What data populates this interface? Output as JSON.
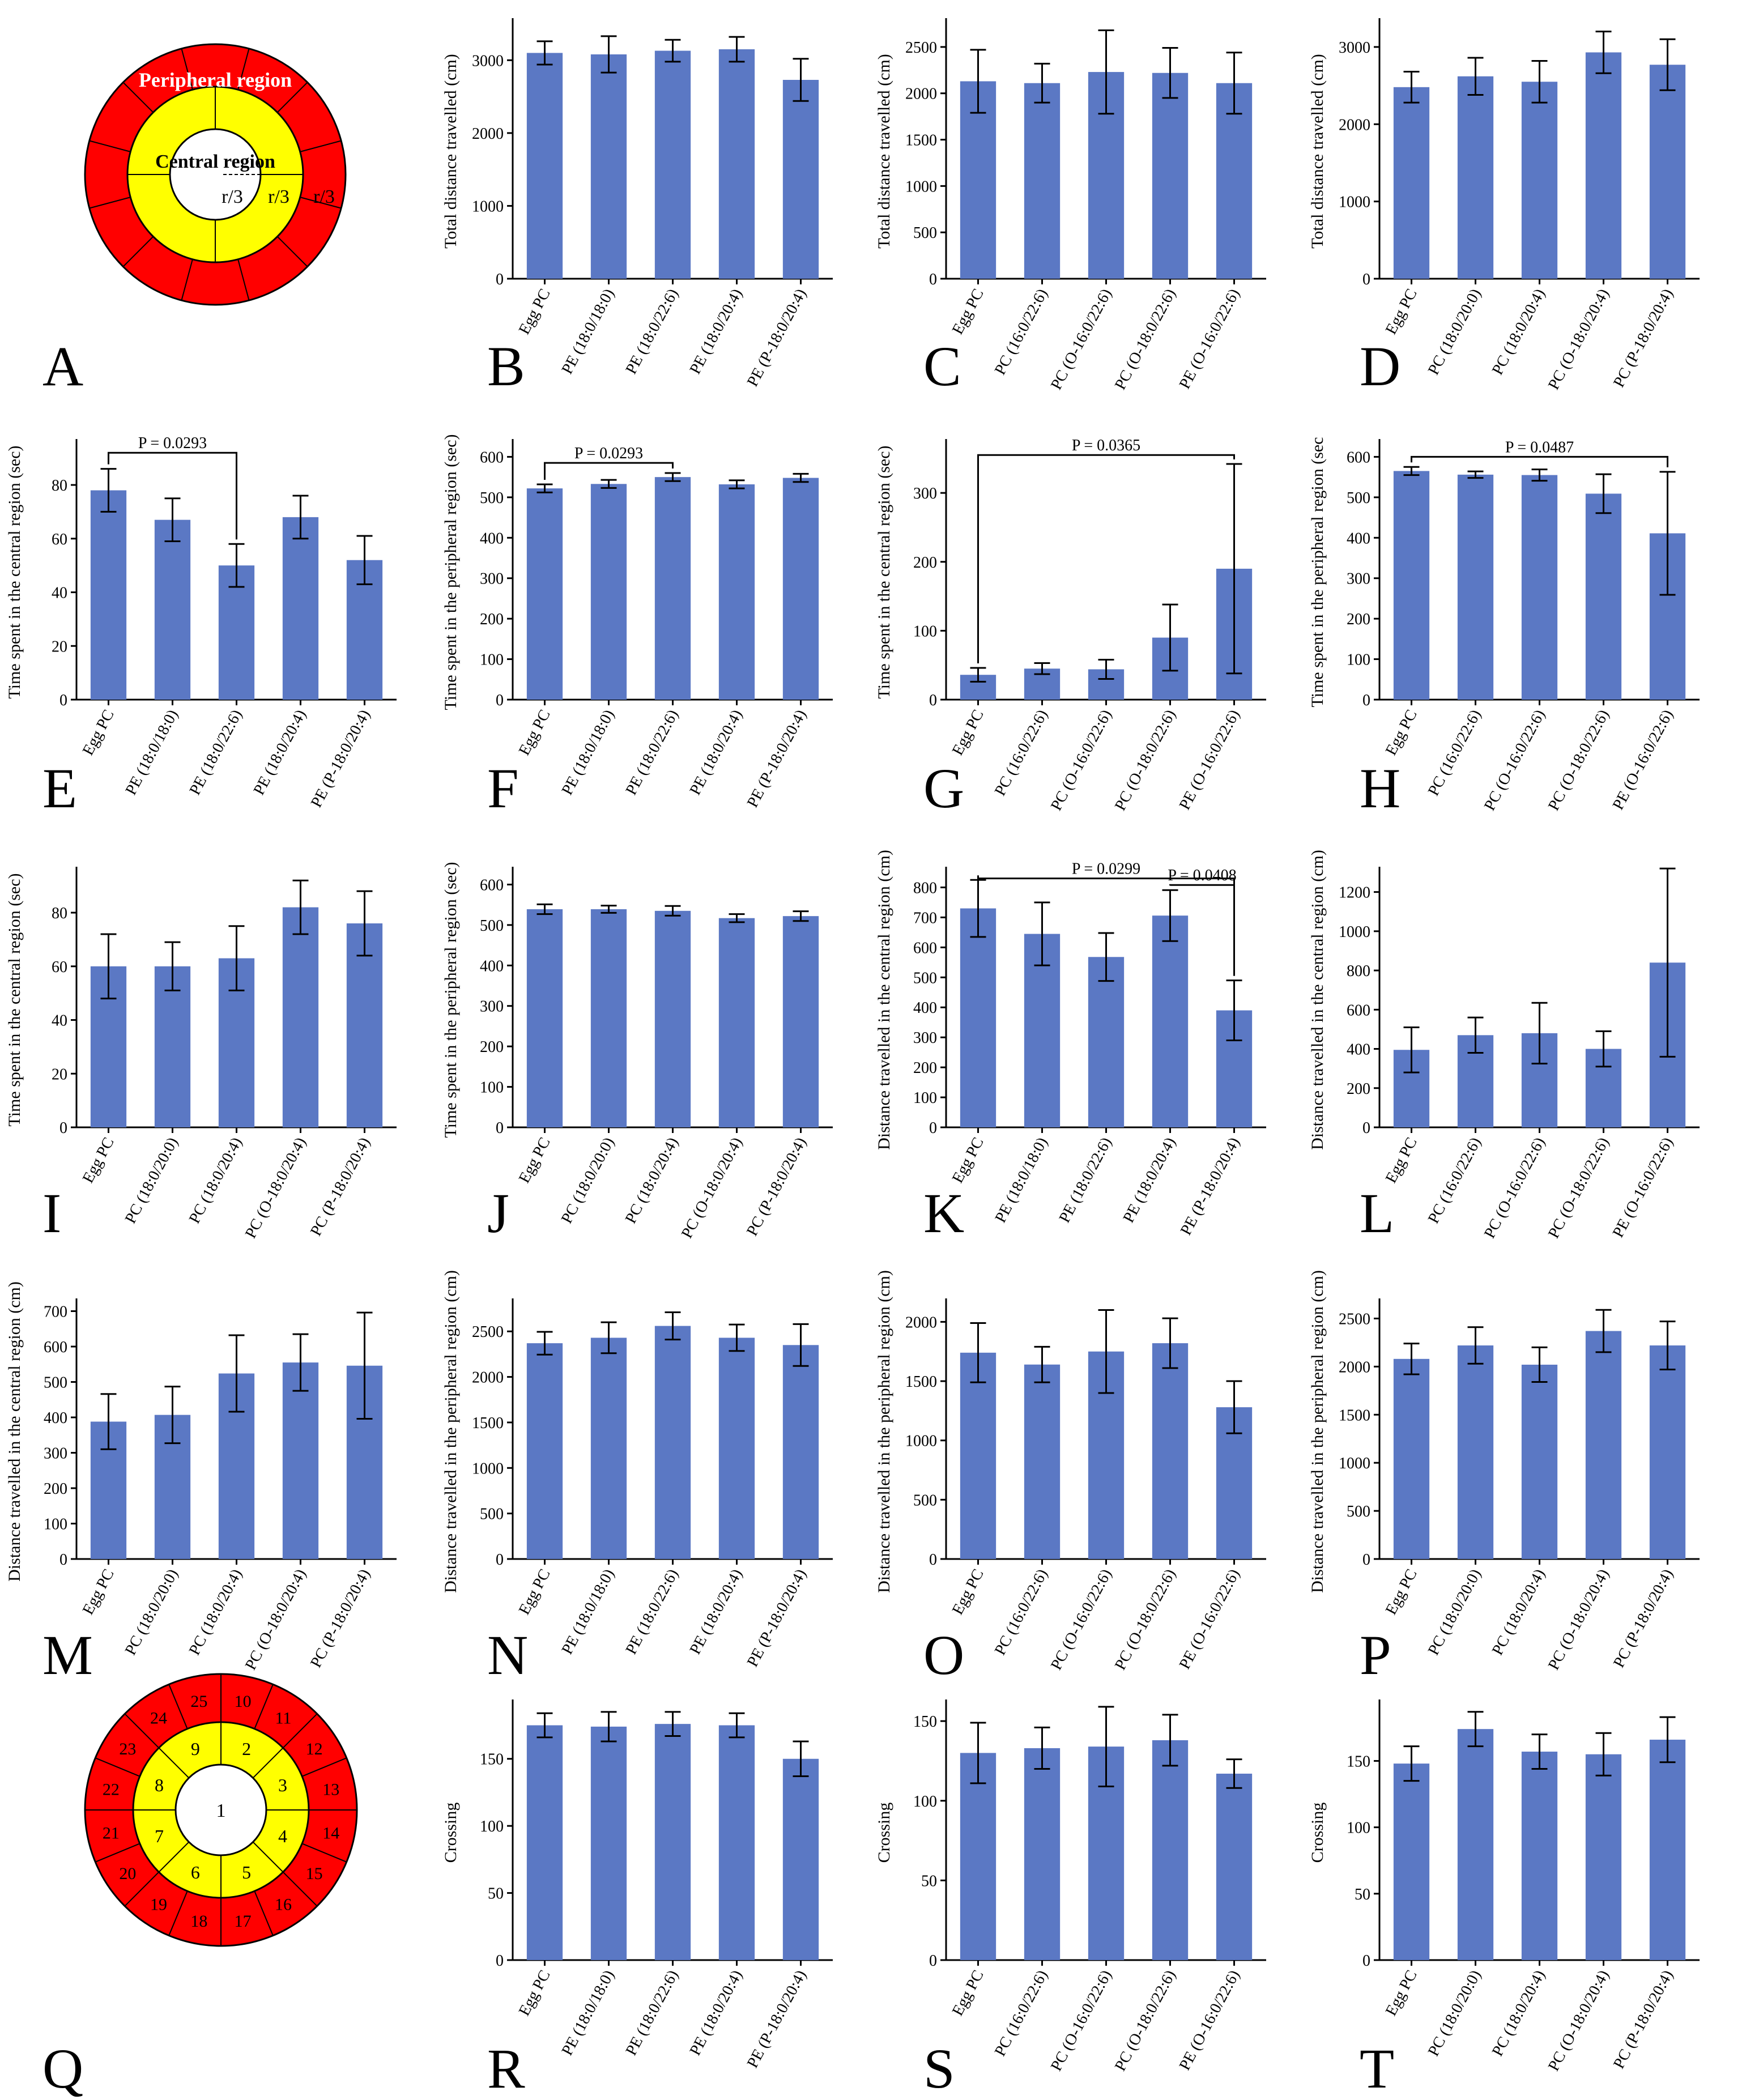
{
  "panel_letters": [
    "A",
    "B",
    "C",
    "D",
    "E",
    "F",
    "G",
    "H",
    "I",
    "J",
    "K",
    "L",
    "M",
    "N",
    "O",
    "P",
    "Q",
    "R",
    "S",
    "T"
  ],
  "diagram_a": {
    "peripheral_label": "Peripheral region",
    "central_label": "Central region",
    "radius_labels": [
      "r/3",
      "r/3",
      "r/3"
    ],
    "colors": {
      "outer": "#FF0000",
      "middle": "#FFFF00",
      "inner": "#FFFFFF"
    }
  },
  "diagram_q": {
    "center_label": "1",
    "inner_ring_labels": [
      "2",
      "3",
      "4",
      "5",
      "6",
      "7",
      "8",
      "9"
    ],
    "outer_ring_labels": [
      "10",
      "11",
      "12",
      "13",
      "14",
      "15",
      "16",
      "17",
      "18",
      "19",
      "20",
      "21",
      "22",
      "23",
      "24",
      "25"
    ]
  },
  "chart_data": [
    {
      "panel": "B",
      "type": "bar",
      "ylabel": "Total distance travelled (cm)",
      "ylim": [
        0,
        3500
      ],
      "yticks": [
        0,
        1000,
        2000,
        3000
      ],
      "categories": [
        "Egg PC",
        "PE (18:0/18:0)",
        "PE (18:0/22:6)",
        "PE (18:0/20:4)",
        "PE (P-18:0/20:4)"
      ],
      "values": [
        3100,
        3080,
        3130,
        3150,
        2730
      ],
      "errors": [
        160,
        250,
        150,
        170,
        290
      ],
      "significance": []
    },
    {
      "panel": "C",
      "type": "bar",
      "ylabel": "Total distance travelled (cm)",
      "ylim": [
        0,
        2750
      ],
      "yticks": [
        0,
        500,
        1000,
        1500,
        2000,
        2500
      ],
      "categories": [
        "Egg PC",
        "PC (16:0/22:6)",
        "PC (O-16:0/22:6)",
        "PC (O-18:0/22:6)",
        "PE (O-16:0/22:6)"
      ],
      "values": [
        2130,
        2110,
        2230,
        2220,
        2110
      ],
      "errors": [
        340,
        210,
        450,
        270,
        330
      ],
      "significance": []
    },
    {
      "panel": "D",
      "type": "bar",
      "ylabel": "Total distance travelled (cm)",
      "ylim": [
        0,
        3300
      ],
      "yticks": [
        0,
        1000,
        2000,
        3000
      ],
      "categories": [
        "Egg PC",
        "PC (18:0/20:0)",
        "PC (18:0/20:4)",
        "PC (O-18:0/20:4)",
        "PC (P-18:0/20:4)"
      ],
      "values": [
        2480,
        2620,
        2550,
        2930,
        2770
      ],
      "errors": [
        200,
        240,
        270,
        270,
        330
      ],
      "significance": []
    },
    {
      "panel": "E",
      "type": "bar",
      "ylabel": "Time spent in the central region (sec)",
      "ylim": [
        0,
        95
      ],
      "yticks": [
        0,
        20,
        40,
        60,
        80
      ],
      "categories": [
        "Egg PC",
        "PE (18:0/18:0)",
        "PE (18:0/22:6)",
        "PE (18:0/20:4)",
        "PE (P-18:0/20:4)"
      ],
      "values": [
        78,
        67,
        50,
        68,
        52
      ],
      "errors": [
        8,
        8,
        8,
        8,
        9
      ],
      "significance": [
        {
          "from": 0,
          "to": 2,
          "label": "P = 0.0293",
          "level": 92
        }
      ]
    },
    {
      "panel": "F",
      "type": "bar",
      "ylabel": "Time spent in the peripheral region (sec)",
      "ylim": [
        0,
        630
      ],
      "yticks": [
        0,
        100,
        200,
        300,
        400,
        500,
        600
      ],
      "categories": [
        "Egg PC",
        "PE (18:0/18:0)",
        "PE (18:0/22:6)",
        "PE (18:0/20:4)",
        "PE (P-18:0/20:4)"
      ],
      "values": [
        522,
        533,
        550,
        532,
        548
      ],
      "errors": [
        10,
        10,
        10,
        10,
        10
      ],
      "significance": [
        {
          "from": 0,
          "to": 2,
          "label": "P = 0.0293",
          "level": 585
        }
      ]
    },
    {
      "panel": "G",
      "type": "bar",
      "ylabel": "Time spent in the central region (sec)",
      "ylim": [
        0,
        370
      ],
      "yticks": [
        0,
        100,
        200,
        300
      ],
      "categories": [
        "Egg PC",
        "PC (16:0/22:6)",
        "PC (O-16:0/22:6)",
        "PC (O-18:0/22:6)",
        "PE (O-16:0/22:6)"
      ],
      "values": [
        36,
        45,
        44,
        90,
        190
      ],
      "errors": [
        10,
        8,
        14,
        48,
        152
      ],
      "significance": [
        {
          "from": 0,
          "to": 4,
          "label": "P = 0.0365",
          "level": 355
        }
      ]
    },
    {
      "panel": "H",
      "type": "bar",
      "ylabel": "Time spent in the peripheral region (sec",
      "ylim": [
        0,
        630
      ],
      "yticks": [
        0,
        100,
        200,
        300,
        400,
        500,
        600
      ],
      "categories": [
        "Egg PC",
        "PC (16:0/22:6)",
        "PC (O-16:0/22:6)",
        "PC (O-18:0/22:6)",
        "PE (O-16:0/22:6)"
      ],
      "values": [
        565,
        556,
        555,
        509,
        411
      ],
      "errors": [
        10,
        8,
        14,
        48,
        152
      ],
      "significance": [
        {
          "from": 0,
          "to": 4,
          "label": "P = 0.0487",
          "level": 600
        }
      ]
    },
    {
      "panel": "I",
      "type": "bar",
      "ylabel": "Time spent in the central region (sec)",
      "ylim": [
        0,
        95
      ],
      "yticks": [
        0,
        20,
        40,
        60,
        80
      ],
      "categories": [
        "Egg PC",
        "PC (18:0/20:0)",
        "PC (18:0/20:4)",
        "PC (O-18:0/20:4)",
        "PC (P-18:0/20:4)"
      ],
      "values": [
        60,
        60,
        63,
        82,
        76
      ],
      "errors": [
        12,
        9,
        12,
        10,
        12
      ],
      "significance": []
    },
    {
      "panel": "J",
      "type": "bar",
      "ylabel": "Time spent in the peripheral region (sec)",
      "ylim": [
        0,
        630
      ],
      "yticks": [
        0,
        100,
        200,
        300,
        400,
        500,
        600
      ],
      "categories": [
        "Egg PC",
        "PC (18:0/20:0)",
        "PC (18:0/20:4)",
        "PC (O-18:0/20:4)",
        "PC (P-18:0/20:4)"
      ],
      "values": [
        539,
        539,
        535,
        517,
        522
      ],
      "errors": [
        12,
        9,
        12,
        10,
        12
      ],
      "significance": []
    },
    {
      "panel": "K",
      "type": "bar",
      "ylabel": "Distance travelled in the central region (cm)",
      "ylim": [
        0,
        850
      ],
      "yticks": [
        0,
        100,
        200,
        300,
        400,
        500,
        600,
        700,
        800
      ],
      "categories": [
        "Egg PC",
        "PE (18:0/18:0)",
        "PE (18:0/22:6)",
        "PE (18:0/20:4)",
        "PE (P-18:0/20:4)"
      ],
      "values": [
        730,
        645,
        568,
        706,
        390
      ],
      "errors": [
        95,
        105,
        80,
        85,
        100
      ],
      "significance": [
        {
          "from": 0,
          "to": 4,
          "label": "P = 0.0299",
          "level": 830
        },
        {
          "from": 3,
          "to": 4,
          "label": "P = 0.0408",
          "level": 808
        }
      ]
    },
    {
      "panel": "L",
      "type": "bar",
      "ylabel": "Distance travelled in the central region (cm)",
      "ylim": [
        0,
        1300
      ],
      "yticks": [
        0,
        200,
        400,
        600,
        800,
        1000,
        1200
      ],
      "categories": [
        "Egg PC",
        "PC (16:0/22:6)",
        "PC (O-16:0/22:6)",
        "PC (O-18:0/22:6)",
        "PE (O-16:0/22:6)"
      ],
      "values": [
        395,
        470,
        480,
        400,
        840
      ],
      "errors": [
        115,
        90,
        155,
        90,
        480
      ],
      "significance": []
    },
    {
      "panel": "M",
      "type": "bar",
      "ylabel": "Distance travelled in the central region  (cm)",
      "ylim": [
        0,
        720
      ],
      "yticks": [
        0,
        100,
        200,
        300,
        400,
        500,
        600,
        700
      ],
      "categories": [
        "Egg PC",
        "PC (18:0/20:0)",
        "PC (18:0/20:4)",
        "PC (O-18:0/20:4)",
        "PC (P-18:0/20:4)"
      ],
      "values": [
        388,
        407,
        524,
        555,
        546
      ],
      "errors": [
        78,
        80,
        108,
        80,
        150
      ],
      "significance": []
    },
    {
      "panel": "N",
      "type": "bar",
      "ylabel": "Distance travelled in the peripheral region  (cm)",
      "ylim": [
        0,
        2800
      ],
      "yticks": [
        0,
        500,
        1000,
        1500,
        2000,
        2500
      ],
      "categories": [
        "Egg PC",
        "PE (18:0/18:0)",
        "PE (18:0/22:6)",
        "PE (18:0/20:4)",
        "PE (P-18:0/20:4)"
      ],
      "values": [
        2370,
        2430,
        2560,
        2430,
        2350
      ],
      "errors": [
        125,
        170,
        150,
        145,
        230
      ],
      "significance": []
    },
    {
      "panel": "O",
      "type": "bar",
      "ylabel": "Distance travelled in the peripheral region  (cm)",
      "ylim": [
        0,
        2150
      ],
      "yticks": [
        0,
        500,
        1000,
        1500,
        2000
      ],
      "categories": [
        "Egg PC",
        "PC (16:0/22:6)",
        "PC (O-16:0/22:6)",
        "PC (O-18:0/22:6)",
        "PE (O-16:0/22:6)"
      ],
      "values": [
        1740,
        1640,
        1750,
        1820,
        1280
      ],
      "errors": [
        250,
        150,
        350,
        210,
        220
      ],
      "significance": []
    },
    {
      "panel": "P",
      "type": "bar",
      "ylabel": "Distance travelled in the peripheral region  (cm)",
      "ylim": [
        0,
        2650
      ],
      "yticks": [
        0,
        500,
        1000,
        1500,
        2000,
        2500
      ],
      "categories": [
        "Egg PC",
        "PC (18:0/20:0)",
        "PC (18:0/20:4)",
        "PC (O-18:0/20:4)",
        "PC (P-18:0/20:4)"
      ],
      "values": [
        2080,
        2220,
        2020,
        2370,
        2220
      ],
      "errors": [
        160,
        190,
        180,
        220,
        250
      ],
      "significance": []
    },
    {
      "panel": "R",
      "type": "bar",
      "ylabel": "Crossing",
      "ylim": [
        0,
        190
      ],
      "yticks": [
        0,
        50,
        100,
        150
      ],
      "categories": [
        "Egg PC",
        "PE (18:0/18:0)",
        "PE (18:0/22:6)",
        "PE (18:0/20:4)",
        "PE (P-18:0/20:4)"
      ],
      "values": [
        175,
        174,
        176,
        175,
        150
      ],
      "errors": [
        9,
        11,
        9,
        9,
        13
      ],
      "significance": []
    },
    {
      "panel": "S",
      "type": "bar",
      "ylabel": "Crossing",
      "ylim": [
        0,
        160
      ],
      "yticks": [
        0,
        50,
        100,
        150
      ],
      "categories": [
        "Egg PC",
        "PC (16:0/22:6)",
        "PC (O-16:0/22:6)",
        "PC (O-18:0/22:6)",
        "PE (O-16:0/22:6)"
      ],
      "values": [
        130,
        133,
        134,
        138,
        117
      ],
      "errors": [
        19,
        13,
        25,
        16,
        9
      ],
      "significance": []
    },
    {
      "panel": "T",
      "type": "bar",
      "ylabel": "Crossing",
      "ylim": [
        0,
        192
      ],
      "yticks": [
        0,
        50,
        100,
        150
      ],
      "categories": [
        "Egg PC",
        "PC (18:0/20:0)",
        "PC (18:0/20:4)",
        "PC (O-18:0/20:4)",
        "PC (P-18:0/20:4)"
      ],
      "values": [
        148,
        174,
        157,
        155,
        166
      ],
      "errors": [
        13,
        13,
        13,
        16,
        17
      ],
      "significance": []
    }
  ]
}
